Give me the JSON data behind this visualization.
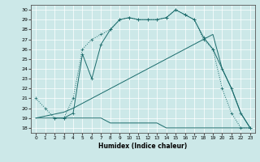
{
  "title": "",
  "xlabel": "Humidex (Indice chaleur)",
  "xlim": [
    -0.5,
    23.5
  ],
  "ylim": [
    17.5,
    30.5
  ],
  "yticks": [
    18,
    19,
    20,
    21,
    22,
    23,
    24,
    25,
    26,
    27,
    28,
    29,
    30
  ],
  "xticks": [
    0,
    1,
    2,
    3,
    4,
    5,
    6,
    7,
    8,
    9,
    10,
    11,
    12,
    13,
    14,
    15,
    16,
    17,
    18,
    19,
    20,
    21,
    22,
    23
  ],
  "bg_color": "#cce8e8",
  "line_color": "#1a6b6b",
  "grid_color": "#ffffff",
  "line1_x": [
    0,
    1,
    2,
    3,
    4,
    5,
    6,
    7,
    8,
    9,
    10,
    11,
    12,
    13,
    14,
    15,
    16,
    17,
    18,
    19,
    20,
    21,
    22,
    23
  ],
  "line1_y": [
    21,
    20,
    19,
    19,
    21,
    26,
    27,
    27.5,
    28,
    29,
    29.2,
    29,
    29,
    29,
    29.2,
    30,
    29.5,
    29,
    27,
    26,
    22,
    19.5,
    18,
    18
  ],
  "line1_style": "dotted",
  "line2_x": [
    2,
    3,
    4,
    5,
    6,
    7,
    8,
    9,
    10,
    11,
    12,
    13,
    14,
    15,
    16,
    17,
    18,
    19,
    20,
    21,
    22,
    23
  ],
  "line2_y": [
    19,
    19,
    19.5,
    25.5,
    23,
    26.5,
    28,
    29,
    29.2,
    29,
    29,
    29,
    29.2,
    30,
    29.5,
    29,
    27.2,
    26,
    24,
    22,
    19.5,
    18
  ],
  "line2_style": "solid",
  "line3_x": [
    0,
    1,
    2,
    3,
    4,
    5,
    6,
    7,
    8,
    9,
    10,
    11,
    12,
    13,
    14,
    15,
    16,
    17,
    18,
    19,
    20,
    21,
    22,
    23
  ],
  "line3_y": [
    19,
    19,
    19,
    19,
    19,
    19,
    19,
    19,
    18.5,
    18.5,
    18.5,
    18.5,
    18.5,
    18.5,
    18,
    18,
    18,
    18,
    18,
    18,
    18,
    18,
    18,
    18
  ],
  "line3_style": "solid",
  "line4_x": [
    0,
    1,
    2,
    3,
    4,
    5,
    6,
    7,
    8,
    9,
    10,
    11,
    12,
    13,
    14,
    15,
    16,
    17,
    18,
    19,
    20,
    21,
    22,
    23
  ],
  "line4_y": [
    19,
    19.2,
    19.4,
    19.6,
    20,
    20.5,
    21,
    21.5,
    22,
    22.5,
    23,
    23.5,
    24,
    24.5,
    25,
    25.5,
    26,
    26.5,
    27,
    27.5,
    24,
    22,
    19.5,
    18
  ],
  "line4_style": "solid"
}
